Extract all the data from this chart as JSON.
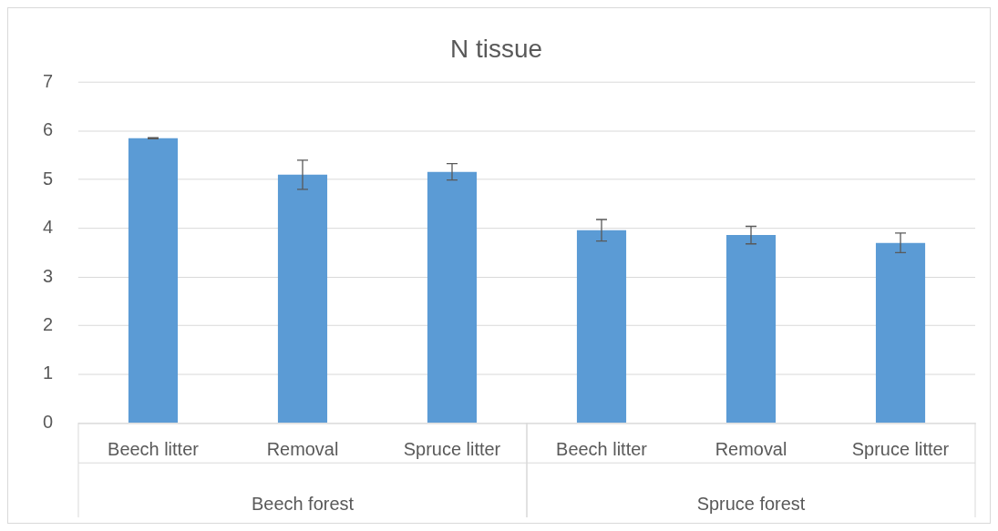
{
  "chart_data": {
    "type": "bar",
    "title": "N tissue",
    "categories": [
      "Beech litter",
      "Removal",
      "Spruce litter",
      "Beech litter",
      "Removal",
      "Spruce litter"
    ],
    "values": [
      5.85,
      5.1,
      5.16,
      3.96,
      3.86,
      3.7
    ],
    "errors": [
      0.01,
      0.3,
      0.17,
      0.22,
      0.18,
      0.2
    ],
    "color": "#5b9bd5",
    "ylim": [
      0,
      7
    ],
    "yticks": [
      0,
      1,
      2,
      3,
      4,
      5,
      6,
      7
    ],
    "grid": "y",
    "annotations": [
      "Beech forest",
      "Spruce forest"
    ]
  }
}
